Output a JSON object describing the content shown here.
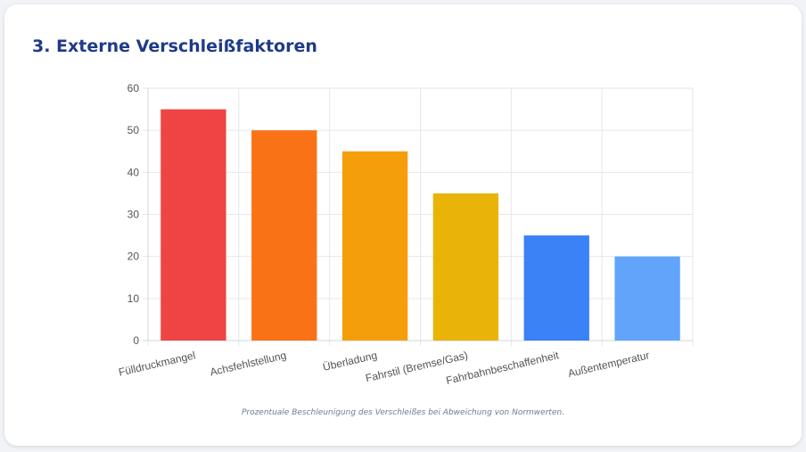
{
  "section": {
    "title": "3. Externe Verschleißfaktoren",
    "caption": "Prozentuale Beschleunigung des Verschleißes bei Abweichung von Normwerten."
  },
  "chart_data": {
    "type": "bar",
    "title": "",
    "xlabel": "",
    "ylabel": "",
    "categories": [
      "Fülldruckmangel",
      "Achsfehlstellung",
      "Überladung",
      "Fahrstil (Bremse/Gas)",
      "Fahrbahnbeschaffenheit",
      "Außentemperatur"
    ],
    "values": [
      55,
      50,
      45,
      35,
      25,
      20
    ],
    "colors": [
      "#ef4444",
      "#f97316",
      "#f59e0b",
      "#eab308",
      "#3b82f6",
      "#60a5fa"
    ],
    "ylim": [
      0,
      60
    ],
    "yticks": [
      0,
      10,
      20,
      30,
      40,
      50,
      60
    ],
    "grid": true,
    "legend": "none"
  }
}
